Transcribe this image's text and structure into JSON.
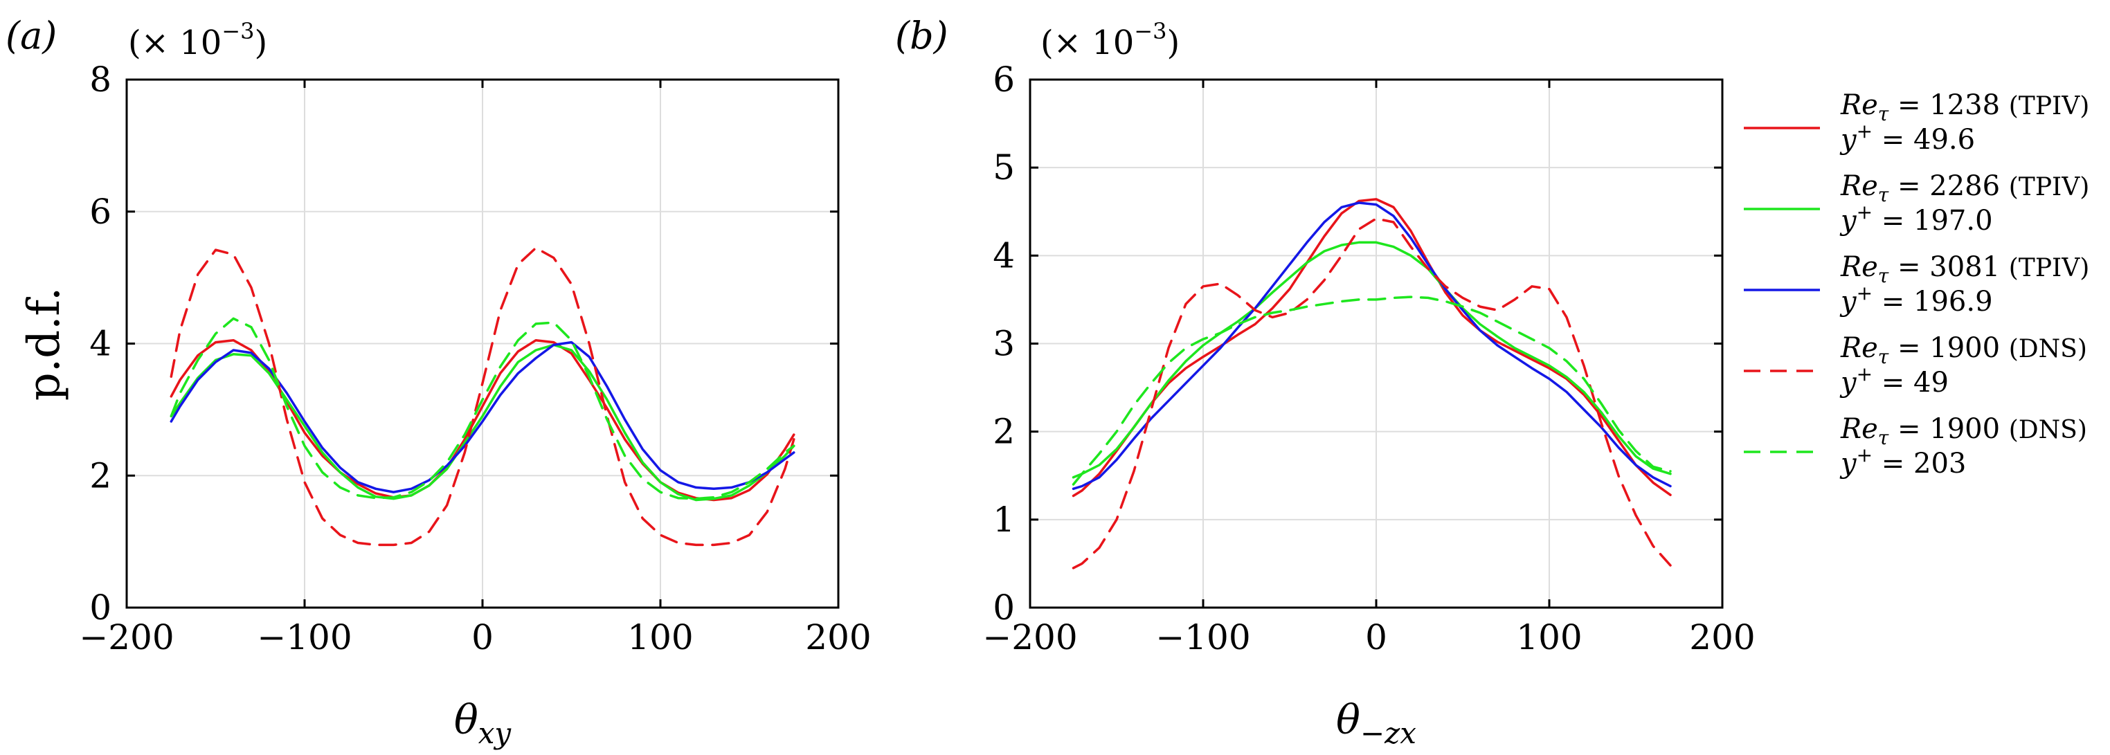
{
  "chart_data": [
    {
      "type": "line",
      "panel_label": "(a)",
      "title": "",
      "xlabel": "θxy",
      "xlabel_parts": [
        "θ",
        "xy"
      ],
      "ylabel": "p.d.f.",
      "multiplier": "(× 10−3)",
      "multiplier_parts": [
        "(× 10",
        "−3",
        ")"
      ],
      "xlim": [
        -200,
        200
      ],
      "ylim": [
        0,
        8
      ],
      "xticks": [
        -200,
        -100,
        0,
        100,
        200
      ],
      "yticks": [
        0,
        2,
        4,
        6,
        8
      ],
      "xtick_labels": [
        "−200",
        "−100",
        "0",
        "100",
        "200"
      ],
      "ytick_labels": [
        "0",
        "2",
        "4",
        "6",
        "8"
      ],
      "grid": true,
      "x": [
        -175,
        -170,
        -160,
        -150,
        -140,
        -130,
        -120,
        -110,
        -100,
        -90,
        -80,
        -70,
        -60,
        -50,
        -40,
        -30,
        -20,
        -10,
        0,
        10,
        20,
        30,
        40,
        50,
        60,
        70,
        80,
        90,
        100,
        110,
        120,
        130,
        140,
        150,
        160,
        170,
        175
      ],
      "series": [
        {
          "name": "Reτ = 1238 (TPIV) y+ = 49.6",
          "color": "#e8141a",
          "dash": "solid",
          "values": [
            3.2,
            3.45,
            3.82,
            4.02,
            4.05,
            3.9,
            3.58,
            3.12,
            2.65,
            2.3,
            2.05,
            1.87,
            1.73,
            1.67,
            1.7,
            1.85,
            2.12,
            2.55,
            3.05,
            3.55,
            3.88,
            4.05,
            4.02,
            3.85,
            3.45,
            3.02,
            2.55,
            2.18,
            1.9,
            1.74,
            1.66,
            1.63,
            1.66,
            1.78,
            2.02,
            2.4,
            2.62
          ]
        },
        {
          "name": "Reτ = 2286 (TPIV) y+ = 197.0",
          "color": "#1ee61e",
          "dash": "solid",
          "values": [
            2.9,
            3.1,
            3.48,
            3.75,
            3.84,
            3.82,
            3.55,
            3.15,
            2.75,
            2.35,
            2.05,
            1.82,
            1.68,
            1.65,
            1.7,
            1.85,
            2.1,
            2.5,
            2.9,
            3.35,
            3.72,
            3.9,
            3.98,
            3.9,
            3.58,
            3.15,
            2.65,
            2.2,
            1.9,
            1.72,
            1.63,
            1.65,
            1.7,
            1.85,
            2.05,
            2.3,
            2.45
          ]
        },
        {
          "name": "Reτ = 3081 (TPIV) y+ = 196.9",
          "color": "#1418e6",
          "dash": "solid",
          "values": [
            2.82,
            3.05,
            3.45,
            3.72,
            3.9,
            3.86,
            3.62,
            3.25,
            2.82,
            2.42,
            2.12,
            1.9,
            1.8,
            1.75,
            1.8,
            1.93,
            2.15,
            2.45,
            2.82,
            3.22,
            3.55,
            3.78,
            3.98,
            4.02,
            3.8,
            3.35,
            2.85,
            2.4,
            2.08,
            1.9,
            1.82,
            1.8,
            1.82,
            1.9,
            2.05,
            2.25,
            2.35
          ]
        },
        {
          "name": "Reτ = 1900 (DNS) y+ = 49",
          "color": "#e8141a",
          "dash": "dashed",
          "values": [
            3.5,
            4.2,
            5.05,
            5.42,
            5.35,
            4.85,
            4.0,
            2.85,
            1.9,
            1.35,
            1.1,
            0.98,
            0.95,
            0.95,
            0.98,
            1.15,
            1.55,
            2.35,
            3.4,
            4.5,
            5.2,
            5.45,
            5.3,
            4.9,
            4.0,
            2.9,
            1.9,
            1.35,
            1.1,
            0.98,
            0.95,
            0.95,
            0.98,
            1.1,
            1.45,
            2.1,
            2.55
          ]
        },
        {
          "name": "Reτ = 1900 (DNS) y+ = 203",
          "color": "#1ee61e",
          "dash": "dashed",
          "values": [
            2.9,
            3.25,
            3.75,
            4.15,
            4.38,
            4.25,
            3.75,
            3.05,
            2.45,
            2.05,
            1.82,
            1.7,
            1.66,
            1.67,
            1.75,
            1.92,
            2.2,
            2.62,
            3.15,
            3.65,
            4.05,
            4.3,
            4.32,
            4.05,
            3.5,
            2.85,
            2.3,
            1.95,
            1.75,
            1.66,
            1.65,
            1.67,
            1.75,
            1.9,
            2.1,
            2.35,
            2.45
          ]
        }
      ]
    },
    {
      "type": "line",
      "panel_label": "(b)",
      "title": "",
      "xlabel": "θ−zx",
      "xlabel_parts": [
        "θ",
        "−zx"
      ],
      "ylabel": "",
      "multiplier": "(× 10−3)",
      "multiplier_parts": [
        "(× 10",
        "−3",
        ")"
      ],
      "xlim": [
        -200,
        200
      ],
      "ylim": [
        0,
        6
      ],
      "xticks": [
        -200,
        -100,
        0,
        100,
        200
      ],
      "yticks": [
        0,
        1,
        2,
        3,
        4,
        5,
        6
      ],
      "xtick_labels": [
        "−200",
        "−100",
        "0",
        "100",
        "200"
      ],
      "ytick_labels": [
        "0",
        "1",
        "2",
        "3",
        "4",
        "5",
        "6"
      ],
      "grid": true,
      "legend_position": "right",
      "x": [
        -175,
        -170,
        -160,
        -150,
        -140,
        -130,
        -120,
        -110,
        -100,
        -90,
        -80,
        -70,
        -60,
        -50,
        -40,
        -30,
        -20,
        -10,
        0,
        10,
        20,
        30,
        40,
        50,
        60,
        70,
        80,
        90,
        100,
        110,
        120,
        130,
        140,
        150,
        160,
        170
      ],
      "series": [
        {
          "name": "Reτ = 1238 (TPIV) y+ = 49.6",
          "color": "#e8141a",
          "dash": "solid",
          "values": [
            1.27,
            1.33,
            1.52,
            1.78,
            2.05,
            2.32,
            2.55,
            2.72,
            2.85,
            2.97,
            3.1,
            3.22,
            3.4,
            3.62,
            3.92,
            4.22,
            4.48,
            4.62,
            4.64,
            4.55,
            4.28,
            3.92,
            3.58,
            3.32,
            3.15,
            3.02,
            2.92,
            2.82,
            2.72,
            2.6,
            2.42,
            2.18,
            1.9,
            1.62,
            1.42,
            1.28
          ]
        },
        {
          "name": "Reτ = 2286 (TPIV) y+ = 197.0",
          "color": "#1ee61e",
          "dash": "solid",
          "values": [
            1.48,
            1.52,
            1.62,
            1.8,
            2.05,
            2.32,
            2.58,
            2.8,
            2.98,
            3.12,
            3.25,
            3.4,
            3.58,
            3.75,
            3.92,
            4.05,
            4.12,
            4.15,
            4.15,
            4.1,
            4.0,
            3.85,
            3.62,
            3.4,
            3.22,
            3.08,
            2.95,
            2.85,
            2.75,
            2.62,
            2.45,
            2.22,
            1.95,
            1.72,
            1.58,
            1.52
          ]
        },
        {
          "name": "Reτ = 3081 (TPIV) y+ = 196.9",
          "color": "#1418e6",
          "dash": "solid",
          "values": [
            1.35,
            1.38,
            1.48,
            1.68,
            1.92,
            2.15,
            2.35,
            2.55,
            2.75,
            2.95,
            3.18,
            3.4,
            3.65,
            3.9,
            4.15,
            4.38,
            4.55,
            4.6,
            4.58,
            4.45,
            4.2,
            3.9,
            3.62,
            3.38,
            3.15,
            2.98,
            2.85,
            2.72,
            2.6,
            2.45,
            2.25,
            2.05,
            1.82,
            1.62,
            1.48,
            1.38
          ]
        },
        {
          "name": "Reτ = 1900 (DNS) y+ = 49",
          "color": "#e8141a",
          "dash": "dashed",
          "values": [
            0.45,
            0.5,
            0.68,
            1.0,
            1.55,
            2.25,
            2.95,
            3.45,
            3.65,
            3.68,
            3.55,
            3.38,
            3.3,
            3.35,
            3.5,
            3.72,
            4.0,
            4.3,
            4.42,
            4.38,
            4.1,
            3.85,
            3.65,
            3.52,
            3.42,
            3.38,
            3.5,
            3.65,
            3.62,
            3.3,
            2.75,
            2.1,
            1.5,
            1.05,
            0.7,
            0.48
          ]
        },
        {
          "name": "Reτ = 1900 (DNS) y+ = 203",
          "color": "#1ee61e",
          "dash": "dashed",
          "values": [
            1.4,
            1.52,
            1.75,
            2.0,
            2.3,
            2.55,
            2.78,
            2.95,
            3.05,
            3.12,
            3.22,
            3.3,
            3.35,
            3.38,
            3.42,
            3.45,
            3.48,
            3.5,
            3.5,
            3.52,
            3.53,
            3.52,
            3.48,
            3.42,
            3.35,
            3.25,
            3.15,
            3.05,
            2.95,
            2.8,
            2.6,
            2.32,
            2.02,
            1.78,
            1.6,
            1.55
          ]
        }
      ]
    }
  ],
  "legend": {
    "entries": [
      {
        "color": "#e8141a",
        "dash": "solid",
        "re_val": "1238",
        "src": "(TPIV)",
        "y_val": "49.6"
      },
      {
        "color": "#1ee61e",
        "dash": "solid",
        "re_val": "2286",
        "src": "(TPIV)",
        "y_val": "197.0"
      },
      {
        "color": "#1418e6",
        "dash": "solid",
        "re_val": "3081",
        "src": "(TPIV)",
        "y_val": "196.9"
      },
      {
        "color": "#e8141a",
        "dash": "dashed",
        "re_val": "1900",
        "src": "(DNS)",
        "y_val": "49"
      },
      {
        "color": "#1ee61e",
        "dash": "dashed",
        "re_val": "1900",
        "src": "(DNS)",
        "y_val": "203"
      }
    ]
  }
}
